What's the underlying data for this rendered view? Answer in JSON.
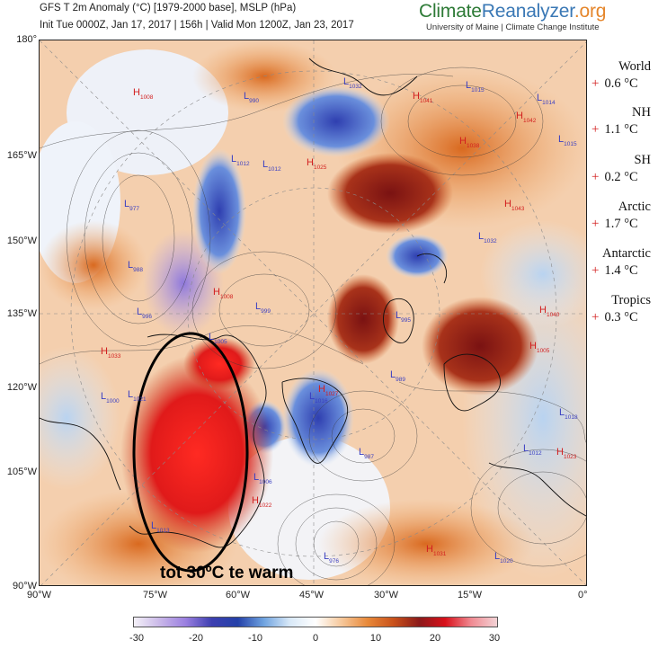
{
  "header": {
    "line1": "GFS T 2m Anomaly (°C) [1979-2000 base], MSLP (hPa)",
    "line2": "Init Tue 0000Z, Jan 17, 2017 | 156h | Valid Mon 1200Z, Jan 23, 2017"
  },
  "brand": {
    "part1": "Climate",
    "part2": "Reanalyzer",
    "part3": ".org",
    "subtitle": "University of Maine | Climate Change Institute"
  },
  "lat_labels": [
    "180°",
    "165°W",
    "150°W",
    "135°W",
    "120°W",
    "105°W",
    "90°W"
  ],
  "lon_labels": [
    "90°W",
    "75°W",
    "60°W",
    "45°W",
    "30°W",
    "15°W",
    "0°"
  ],
  "stats": [
    {
      "name": "World",
      "sign": "+",
      "value": "0.6 °C"
    },
    {
      "name": "NH",
      "sign": "+",
      "value": "1.1 °C"
    },
    {
      "name": "SH",
      "sign": "+",
      "value": "0.2 °C"
    },
    {
      "name": "Arctic",
      "sign": "+",
      "value": "1.7 °C"
    },
    {
      "name": "Antarctic",
      "sign": "+",
      "value": "1.4 °C"
    },
    {
      "name": "Tropics",
      "sign": "+",
      "value": "0.3 °C"
    }
  ],
  "annotation": "tot 30ºC te warm",
  "colorbar": {
    "ticks": [
      "-30",
      "-20",
      "-10",
      "0",
      "10",
      "20",
      "30"
    ],
    "colors": [
      "#f4f1f8",
      "#c9b7e8",
      "#9a7fe0",
      "#3d3fb0",
      "#2440a8",
      "#6fa3e0",
      "#d8e8f7",
      "#ffffff",
      "#f6c89b",
      "#e8893a",
      "#c9521b",
      "#8b1a1a",
      "#d8101a",
      "#f08a92",
      "#f3d3d6"
    ]
  },
  "pressure_labels": [
    {
      "t": "H",
      "v": "1008",
      "c": "red"
    },
    {
      "t": "L",
      "v": "990",
      "c": "blue"
    },
    {
      "t": "L",
      "v": "1032",
      "c": "blue"
    },
    {
      "t": "H",
      "v": "1041",
      "c": "red"
    },
    {
      "t": "L",
      "v": "1015",
      "c": "blue"
    },
    {
      "t": "L",
      "v": "1014",
      "c": "blue"
    },
    {
      "t": "H",
      "v": "1042",
      "c": "red"
    },
    {
      "t": "H",
      "v": "1038",
      "c": "red"
    },
    {
      "t": "L",
      "v": "1015",
      "c": "blue"
    },
    {
      "t": "L",
      "v": "1012",
      "c": "blue"
    },
    {
      "t": "L",
      "v": "1012",
      "c": "blue"
    },
    {
      "t": "H",
      "v": "1025",
      "c": "red"
    },
    {
      "t": "H",
      "v": "1043",
      "c": "red"
    },
    {
      "t": "L",
      "v": "977",
      "c": "blue"
    },
    {
      "t": "L",
      "v": "1032",
      "c": "blue"
    },
    {
      "t": "L",
      "v": "988",
      "c": "blue"
    },
    {
      "t": "H",
      "v": "1008",
      "c": "red"
    },
    {
      "t": "L",
      "v": "999",
      "c": "blue"
    },
    {
      "t": "L",
      "v": "996",
      "c": "blue"
    },
    {
      "t": "L",
      "v": "995",
      "c": "blue"
    },
    {
      "t": "H",
      "v": "1040",
      "c": "red"
    },
    {
      "t": "L",
      "v": "1005",
      "c": "blue"
    },
    {
      "t": "H",
      "v": "1005",
      "c": "red"
    },
    {
      "t": "H",
      "v": "1033",
      "c": "red"
    },
    {
      "t": "L",
      "v": "989",
      "c": "blue"
    },
    {
      "t": "L",
      "v": "1021",
      "c": "blue"
    },
    {
      "t": "H",
      "v": "1027",
      "c": "red"
    },
    {
      "t": "L",
      "v": "987",
      "c": "blue"
    },
    {
      "t": "L",
      "v": "1018",
      "c": "blue"
    },
    {
      "t": "H",
      "v": "1023",
      "c": "red"
    },
    {
      "t": "H",
      "v": "1022",
      "c": "red"
    },
    {
      "t": "L",
      "v": "1012",
      "c": "blue"
    },
    {
      "t": "L",
      "v": "976",
      "c": "blue"
    },
    {
      "t": "H",
      "v": "1031",
      "c": "red"
    },
    {
      "t": "L",
      "v": "1020",
      "c": "blue"
    },
    {
      "t": "L",
      "v": "1013",
      "c": "blue"
    },
    {
      "t": "L",
      "v": "1006",
      "c": "blue"
    },
    {
      "t": "L",
      "v": "1016",
      "c": "blue"
    },
    {
      "t": "L",
      "v": "1000",
      "c": "blue"
    }
  ]
}
